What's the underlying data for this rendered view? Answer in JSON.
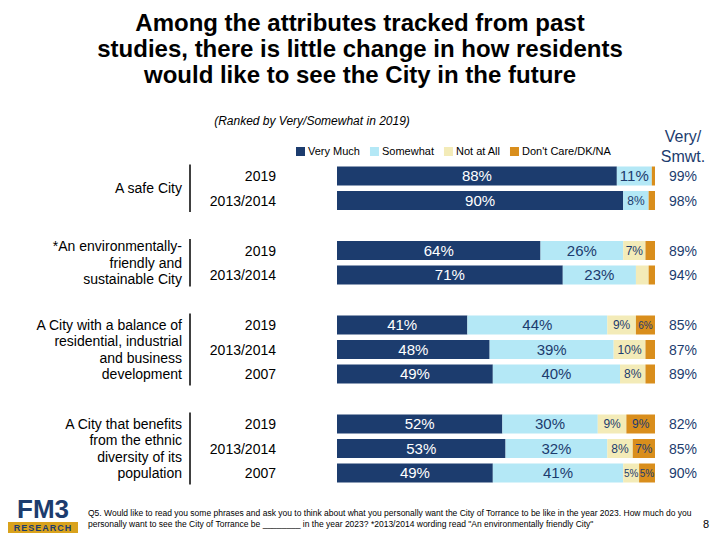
{
  "chart_data": {
    "type": "bar",
    "orientation": "horizontal",
    "stacked": true,
    "data_labels": true,
    "tick_labels": false,
    "legend": "top",
    "title": "Among the attributes tracked from past\nstudies, there is little change in how residents\nwould like to see the City in the future",
    "subtitle": "(Ranked by Very/Somewhat in 2019)",
    "categories": [
      "2019",
      "2013/2014",
      "2019",
      "2013/2014",
      "2019",
      "2013/2014",
      "2007",
      "2019",
      "2013/2014",
      "2007"
    ],
    "group_labels": [
      "A safe City",
      null,
      "*An environmentally-\nfriendly and\nsustainable City",
      null,
      "A City with a balance of\nresidential, industrial\nand business\ndevelopment",
      null,
      null,
      "A City that benefits\nfrom the ethnic\ndiversity of its\npopulation",
      null,
      null
    ],
    "xlim": [
      0,
      100
    ],
    "series": [
      {
        "name": "Very Much",
        "color": "#1c3c6e",
        "values": [
          88,
          90,
          64,
          71,
          41,
          48,
          49,
          52,
          53,
          49
        ],
        "value_labels": [
          "88%",
          "90%",
          "64%",
          "71%",
          "41%",
          "48%",
          "49%",
          "52%",
          "53%",
          "49%"
        ]
      },
      {
        "name": "Somewhat",
        "color": "#b4e8f6",
        "values": [
          11,
          8,
          26,
          23,
          44,
          39,
          40,
          30,
          32,
          41
        ],
        "value_labels": [
          "11%",
          "8%",
          "26%",
          "23%",
          "44%",
          "39%",
          "40%",
          "30%",
          "32%",
          "41%"
        ]
      },
      {
        "name": "Not at All",
        "color": "#f3ebb8",
        "values": [
          0,
          0,
          7,
          4,
          9,
          10,
          8,
          9,
          8,
          5
        ],
        "value_labels": [
          null,
          null,
          "7%",
          null,
          "9%",
          "10%",
          "8%",
          "9%",
          "8%",
          "5%"
        ]
      },
      {
        "name": "Don't Care/DK/NA",
        "color": "#d98e1c",
        "values": [
          1,
          2,
          3,
          2,
          6,
          3,
          3,
          9,
          7,
          5
        ],
        "value_labels": [
          null,
          null,
          null,
          null,
          "6%",
          null,
          null,
          "9%",
          "7%",
          "5%"
        ]
      }
    ],
    "totals": {
      "name": "Very/\nSmwt.",
      "values": [
        99,
        98,
        89,
        94,
        85,
        87,
        89,
        82,
        85,
        90
      ],
      "value_labels": [
        "99%",
        "98%",
        "89%",
        "94%",
        "85%",
        "87%",
        "89%",
        "82%",
        "85%",
        "90%"
      ]
    },
    "footnote": "Q5. Would like to read you some phrases and ask you to think about what you personally want the City of Torrance to be like in the year 2023.  How much do you\npersonally want to see the City of Torrance be ________ in the year 2023? *2013/2014 wording read \"An environmentally friendly City\"",
    "logo": "FM3",
    "logo_subtitle": "RESEARCH",
    "page_number": "8"
  }
}
